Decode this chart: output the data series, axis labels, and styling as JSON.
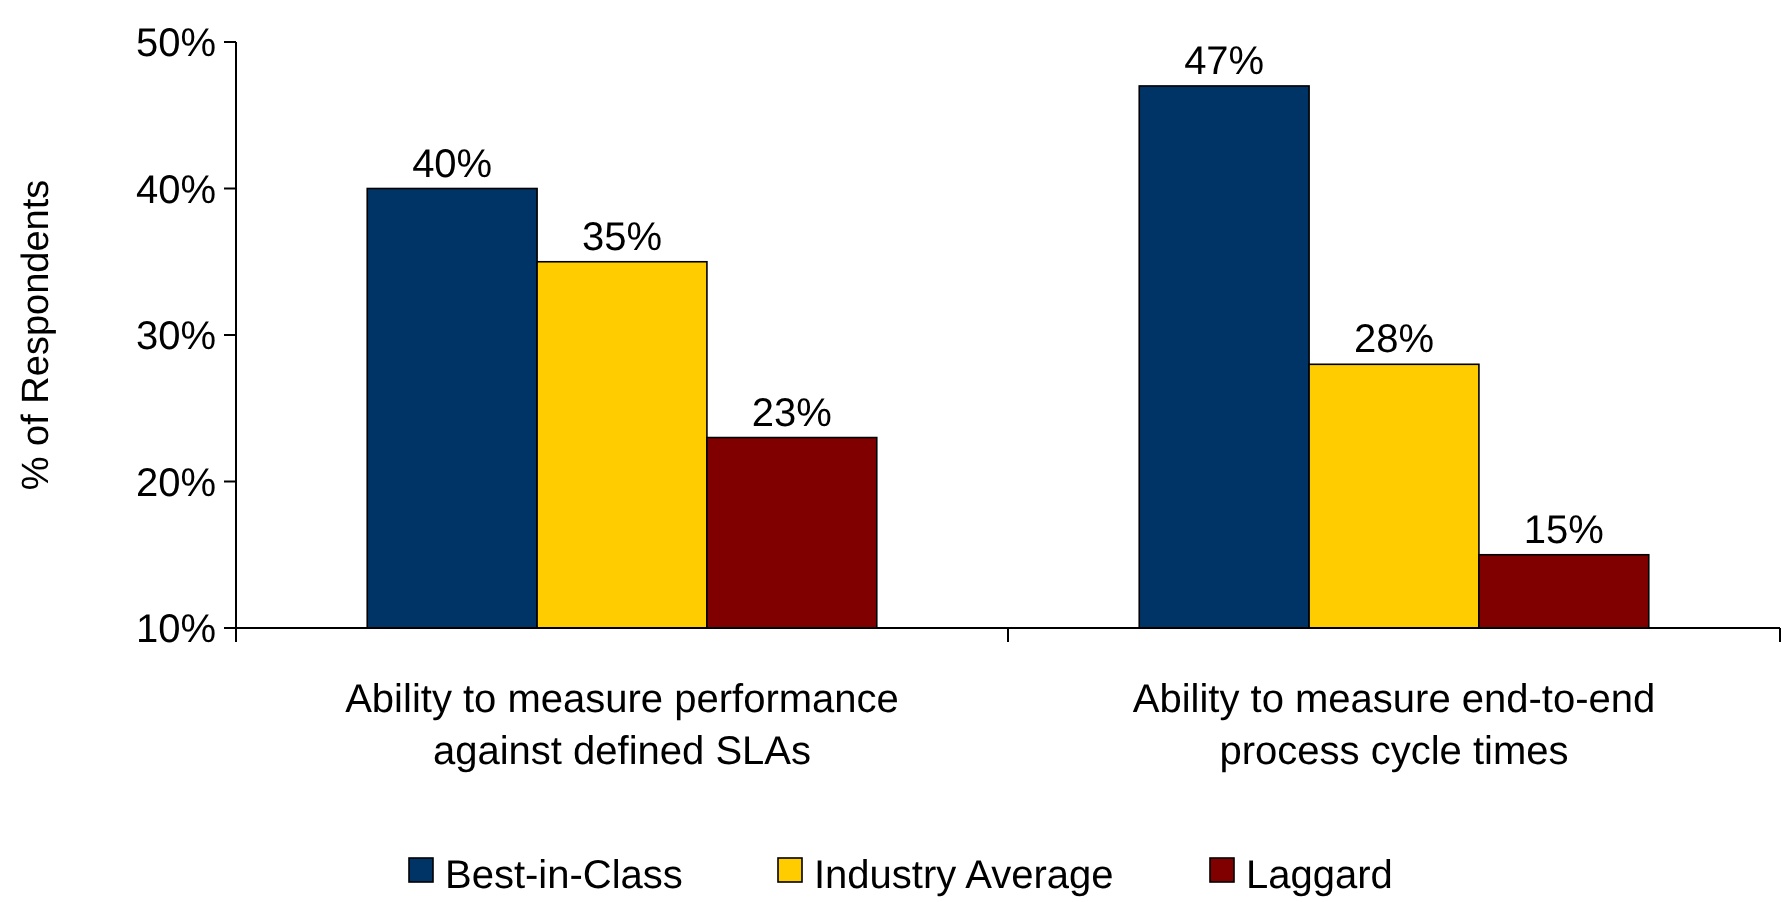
{
  "chart_data": {
    "type": "bar",
    "ylabel": "% of Respondents",
    "categories": [
      "Ability to measure performance against defined SLAs",
      "Ability to measure end-to-end process cycle times"
    ],
    "series": [
      {
        "name": "Best-in-Class",
        "color": "#003366",
        "values": [
          40,
          47
        ],
        "value_labels": [
          "40%",
          "47%"
        ]
      },
      {
        "name": "Industry Average",
        "color": "#ffcc00",
        "values": [
          35,
          28
        ],
        "value_labels": [
          "35%",
          "28%"
        ]
      },
      {
        "name": "Laggard",
        "color": "#800000",
        "values": [
          23,
          15
        ],
        "value_labels": [
          "23%",
          "15%"
        ]
      }
    ],
    "ylim": [
      10,
      50
    ],
    "yticks": [
      {
        "value": 10,
        "label": "10%"
      },
      {
        "value": 20,
        "label": "20%"
      },
      {
        "value": 30,
        "label": "30%"
      },
      {
        "value": 40,
        "label": "40%"
      },
      {
        "value": 50,
        "label": "50%"
      }
    ],
    "grid": false,
    "legend": "bottom"
  }
}
